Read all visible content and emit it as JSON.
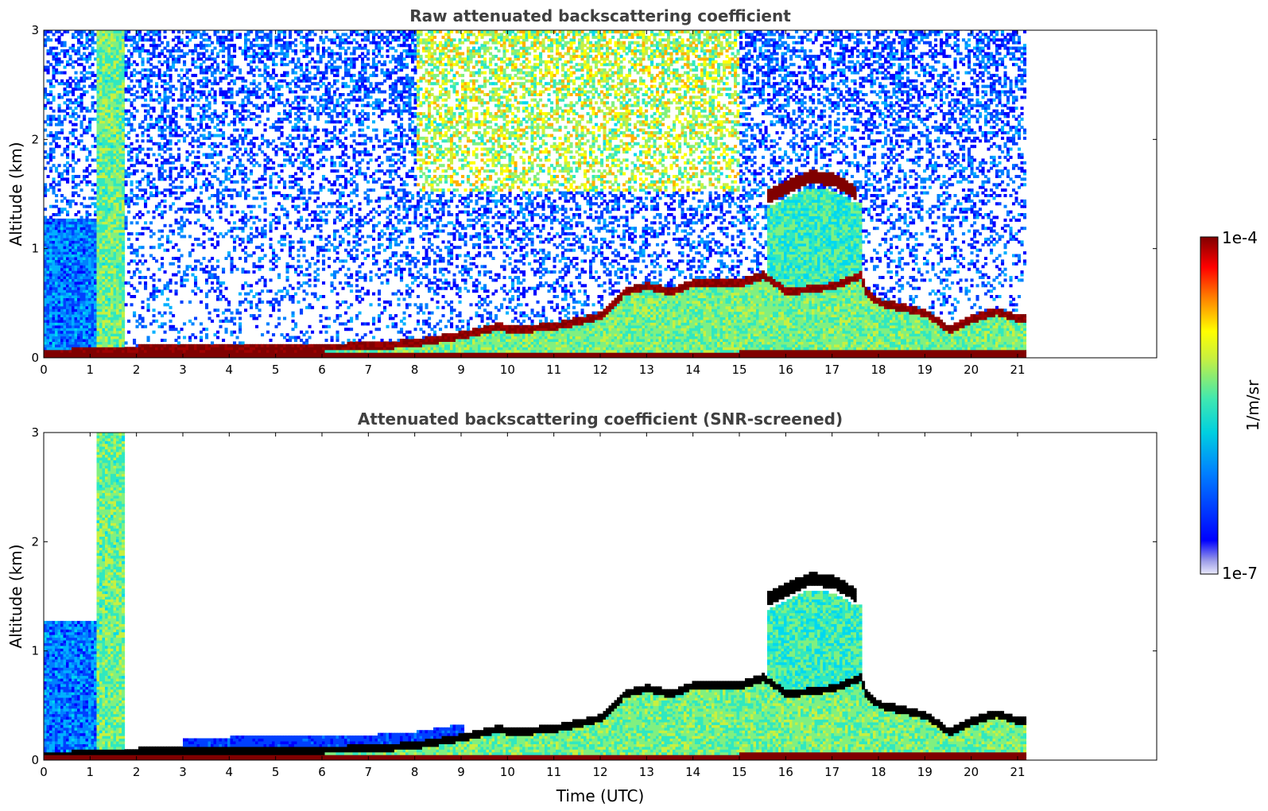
{
  "chart_data": [
    {
      "type": "heatmap",
      "title": "Raw attenuated backscattering coefficient",
      "xlabel": "",
      "ylabel": "Altitude (km)",
      "xlim": [
        0,
        24
      ],
      "ylim": [
        0,
        3
      ],
      "xticks": [
        0,
        1,
        2,
        3,
        4,
        5,
        6,
        7,
        8,
        9,
        10,
        11,
        12,
        13,
        14,
        15,
        16,
        17,
        18,
        19,
        20,
        21
      ],
      "yticks": [
        0,
        1,
        2,
        3
      ],
      "data_extent_hours": [
        0,
        21.15
      ],
      "layers": {
        "surface_layer_top_km": [
          [
            0,
            0.04
          ],
          [
            1.1,
            0.05
          ],
          [
            2,
            0.07
          ],
          [
            4,
            0.08
          ],
          [
            6,
            0.09
          ],
          [
            7,
            0.1
          ],
          [
            8,
            0.13
          ],
          [
            9,
            0.2
          ],
          [
            9.8,
            0.28
          ],
          [
            10,
            0.25
          ],
          [
            11,
            0.28
          ],
          [
            12,
            0.38
          ],
          [
            12.5,
            0.6
          ],
          [
            13,
            0.65
          ],
          [
            13.5,
            0.6
          ],
          [
            14,
            0.68
          ],
          [
            15,
            0.68
          ],
          [
            15.5,
            0.75
          ],
          [
            16,
            0.6
          ],
          [
            17,
            0.65
          ],
          [
            17.6,
            0.75
          ],
          [
            17.7,
            0.6
          ],
          [
            18,
            0.5
          ],
          [
            19,
            0.4
          ],
          [
            19.5,
            0.25
          ],
          [
            20,
            0.35
          ],
          [
            20.5,
            0.42
          ],
          [
            21,
            0.35
          ],
          [
            21.15,
            0.35
          ]
        ],
        "cloud_layer_km": [
          [
            15.5,
            1.45
          ],
          [
            16,
            1.55
          ],
          [
            16.5,
            1.65
          ],
          [
            17,
            1.62
          ],
          [
            17.5,
            1.5
          ]
        ]
      },
      "colorbar": {
        "min_label": "1e-7",
        "max_label": "1e-4",
        "label": "1/m/sr",
        "scale": "log"
      }
    },
    {
      "type": "heatmap",
      "title": "Attenuated backscattering coefficient (SNR-screened)",
      "xlabel": "Time (UTC)",
      "ylabel": "Altitude (km)",
      "xlim": [
        0,
        24
      ],
      "ylim": [
        0,
        3
      ],
      "xticks": [
        0,
        1,
        2,
        3,
        4,
        5,
        6,
        7,
        8,
        9,
        10,
        11,
        12,
        13,
        14,
        15,
        16,
        17,
        18,
        19,
        20,
        21
      ],
      "yticks": [
        0,
        1,
        2,
        3
      ],
      "data_extent_hours": [
        0,
        21.15
      ],
      "colorbar": {
        "min_label": "1e-7",
        "max_label": "1e-4",
        "label": "1/m/sr",
        "scale": "log"
      }
    }
  ]
}
